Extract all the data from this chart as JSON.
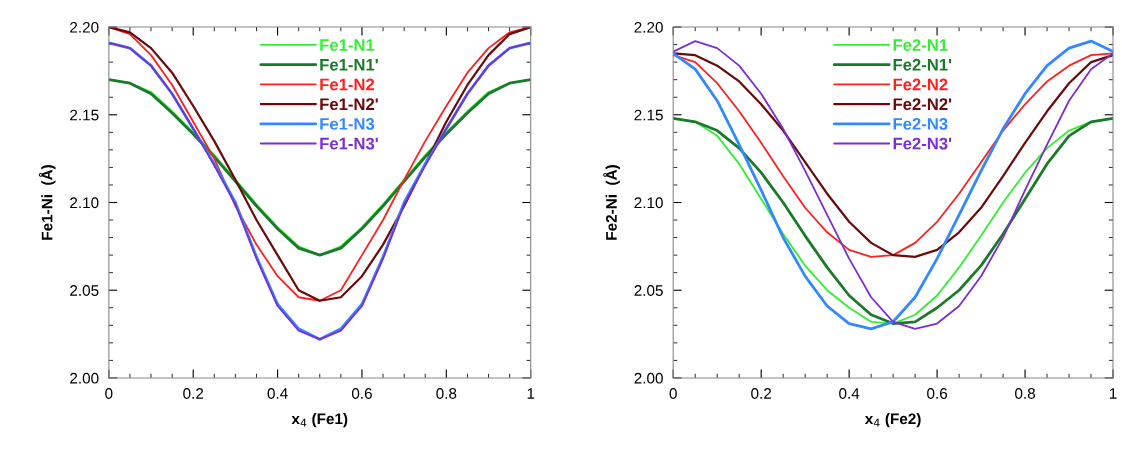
{
  "chart_data": [
    {
      "type": "line",
      "xlabel": "x$_{4}$ (Fe1)",
      "ylabel": "Fe1-Ni  (Å)",
      "xlim": [
        0,
        1
      ],
      "ylim": [
        2.0,
        2.2
      ],
      "xticks": [
        0,
        0.2,
        0.4,
        0.6,
        0.8,
        1
      ],
      "yticks": [
        {
          "value": 2.0,
          "label": "2.00"
        },
        {
          "value": 2.05,
          "label": "2.05"
        },
        {
          "value": 2.1,
          "label": "2.10"
        },
        {
          "value": 2.15,
          "label": "2.15"
        },
        {
          "value": 2.2,
          "label": "2.20"
        }
      ],
      "grid": false,
      "legend": "top",
      "marker": "none",
      "line_style": "solid",
      "x": [
        0,
        0.05,
        0.1,
        0.15,
        0.2,
        0.25,
        0.3,
        0.35,
        0.4,
        0.45,
        0.5,
        0.55,
        0.6,
        0.65,
        0.7,
        0.75,
        0.8,
        0.85,
        0.9,
        0.95,
        1
      ],
      "series": [
        {
          "name": "Fe1-N1",
          "color": "#33ee33",
          "values": [
            2.17,
            2.168,
            2.163,
            2.152,
            2.14,
            2.127,
            2.113,
            2.099,
            2.086,
            2.075,
            2.07,
            2.075,
            2.086,
            2.099,
            2.113,
            2.127,
            2.14,
            2.152,
            2.163,
            2.168,
            2.17
          ]
        },
        {
          "name": "Fe1-N1'",
          "color": "#1a7a2a",
          "values": [
            2.17,
            2.168,
            2.162,
            2.151,
            2.139,
            2.126,
            2.112,
            2.098,
            2.085,
            2.074,
            2.07,
            2.074,
            2.085,
            2.098,
            2.112,
            2.126,
            2.139,
            2.151,
            2.162,
            2.168,
            2.17
          ]
        },
        {
          "name": "Fe1-N2",
          "color": "#ff2020",
          "values": [
            2.2,
            2.196,
            2.184,
            2.167,
            2.146,
            2.125,
            2.098,
            2.076,
            2.058,
            2.046,
            2.044,
            2.05,
            2.07,
            2.09,
            2.113,
            2.135,
            2.155,
            2.174,
            2.188,
            2.197,
            2.2
          ]
        },
        {
          "name": "Fe1-N2'",
          "color": "#6b0a0a",
          "values": [
            2.2,
            2.197,
            2.188,
            2.174,
            2.155,
            2.135,
            2.113,
            2.09,
            2.07,
            2.05,
            2.044,
            2.046,
            2.058,
            2.076,
            2.098,
            2.122,
            2.146,
            2.167,
            2.184,
            2.196,
            2.2
          ]
        },
        {
          "name": "Fe1-N3",
          "color": "#3388ff",
          "values": [
            2.191,
            2.188,
            2.178,
            2.162,
            2.142,
            2.122,
            2.1,
            2.069,
            2.042,
            2.028,
            2.022,
            2.028,
            2.042,
            2.069,
            2.1,
            2.122,
            2.142,
            2.162,
            2.178,
            2.188,
            2.191
          ]
        },
        {
          "name": "Fe1-N3'",
          "color": "#7a2fd6",
          "values": [
            2.191,
            2.188,
            2.178,
            2.162,
            2.142,
            2.121,
            2.099,
            2.068,
            2.041,
            2.027,
            2.022,
            2.027,
            2.041,
            2.068,
            2.099,
            2.121,
            2.142,
            2.162,
            2.178,
            2.188,
            2.191
          ]
        }
      ]
    },
    {
      "type": "line",
      "xlabel": "x$_{4}$ (Fe2)",
      "ylabel": "Fe2-Ni  (Å)",
      "xlim": [
        0,
        1
      ],
      "ylim": [
        2.0,
        2.2
      ],
      "xticks": [
        0,
        0.2,
        0.4,
        0.6,
        0.8,
        1
      ],
      "yticks": [
        {
          "value": 2.0,
          "label": "2.00"
        },
        {
          "value": 2.05,
          "label": "2.05"
        },
        {
          "value": 2.1,
          "label": "2.10"
        },
        {
          "value": 2.15,
          "label": "2.15"
        },
        {
          "value": 2.2,
          "label": "2.20"
        }
      ],
      "grid": false,
      "legend": "top",
      "marker": "none",
      "line_style": "solid",
      "x": [
        0,
        0.05,
        0.1,
        0.15,
        0.2,
        0.25,
        0.3,
        0.35,
        0.4,
        0.45,
        0.5,
        0.55,
        0.6,
        0.65,
        0.7,
        0.75,
        0.8,
        0.85,
        0.9,
        0.95,
        1
      ],
      "series": [
        {
          "name": "Fe2-N1",
          "color": "#33ee33",
          "values": [
            2.148,
            2.146,
            2.138,
            2.122,
            2.102,
            2.082,
            2.064,
            2.05,
            2.04,
            2.032,
            2.031,
            2.036,
            2.047,
            2.063,
            2.081,
            2.1,
            2.117,
            2.131,
            2.141,
            2.146,
            2.148
          ]
        },
        {
          "name": "Fe2-N1'",
          "color": "#1a7a2a",
          "values": [
            2.148,
            2.146,
            2.141,
            2.131,
            2.117,
            2.1,
            2.081,
            2.063,
            2.047,
            2.036,
            2.031,
            2.032,
            2.04,
            2.05,
            2.064,
            2.082,
            2.102,
            2.122,
            2.138,
            2.146,
            2.148
          ]
        },
        {
          "name": "Fe2-N2",
          "color": "#ff2020",
          "values": [
            2.184,
            2.18,
            2.168,
            2.152,
            2.134,
            2.115,
            2.097,
            2.083,
            2.073,
            2.069,
            2.07,
            2.077,
            2.089,
            2.105,
            2.123,
            2.141,
            2.156,
            2.169,
            2.178,
            2.184,
            2.185
          ]
        },
        {
          "name": "Fe2-N2'",
          "color": "#6b0a0a",
          "values": [
            2.185,
            2.184,
            2.178,
            2.169,
            2.156,
            2.141,
            2.123,
            2.105,
            2.089,
            2.077,
            2.07,
            2.069,
            2.073,
            2.083,
            2.097,
            2.115,
            2.134,
            2.152,
            2.168,
            2.18,
            2.184
          ]
        },
        {
          "name": "Fe2-N3",
          "color": "#3388ff",
          "values": [
            2.185,
            2.176,
            2.158,
            2.133,
            2.107,
            2.08,
            2.058,
            2.041,
            2.031,
            2.028,
            2.032,
            2.046,
            2.068,
            2.093,
            2.118,
            2.142,
            2.162,
            2.178,
            2.188,
            2.192,
            2.186
          ]
        },
        {
          "name": "Fe2-N3'",
          "color": "#7a2fd6",
          "values": [
            2.186,
            2.192,
            2.188,
            2.178,
            2.162,
            2.142,
            2.118,
            2.093,
            2.068,
            2.046,
            2.032,
            2.028,
            2.031,
            2.041,
            2.058,
            2.08,
            2.107,
            2.133,
            2.158,
            2.176,
            2.185
          ]
        }
      ]
    }
  ]
}
